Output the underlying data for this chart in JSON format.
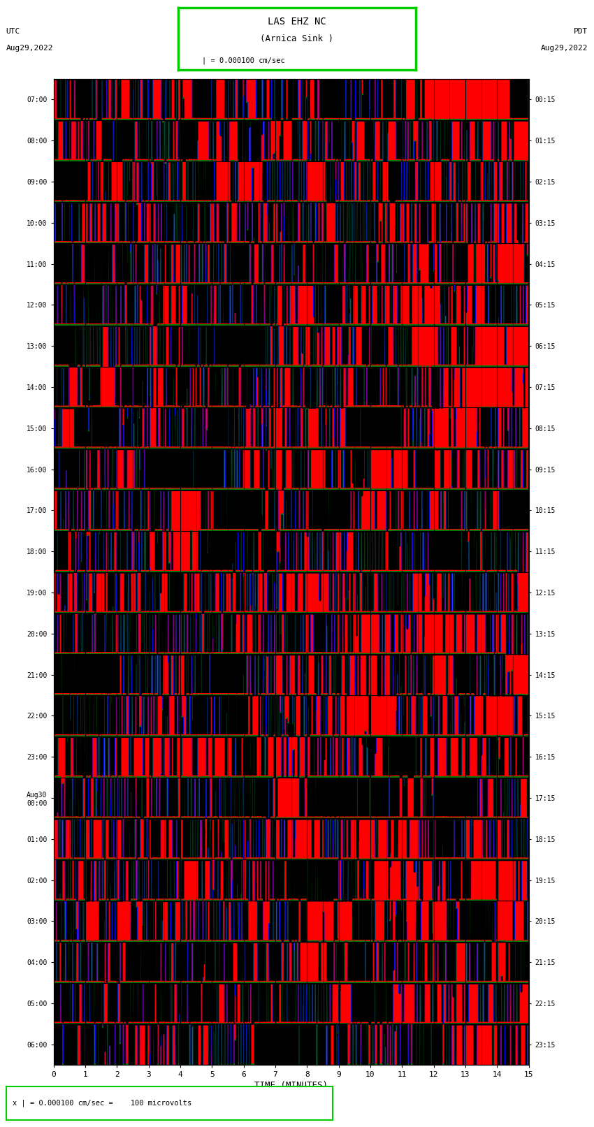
{
  "title_line1": "LAS EHZ NC",
  "title_line2": "(Arnica Sink )",
  "title_scale": "| = 0.000100 cm/sec",
  "left_header_line1": "UTC",
  "left_header_line2": "Aug29,2022",
  "right_header_line1": "PDT",
  "right_header_line2": "Aug29,2022",
  "footer_scale": "x | = 0.000100 cm/sec =    100 microvolts",
  "xlabel": "TIME (MINUTES)",
  "xlim": [
    0,
    15
  ],
  "left_yticks_labels": [
    "07:00",
    "08:00",
    "09:00",
    "10:00",
    "11:00",
    "12:00",
    "13:00",
    "14:00",
    "15:00",
    "16:00",
    "17:00",
    "18:00",
    "19:00",
    "20:00",
    "21:00",
    "22:00",
    "23:00",
    "Aug30\n00:00",
    "01:00",
    "02:00",
    "03:00",
    "04:00",
    "05:00",
    "06:00"
  ],
  "right_yticks_labels": [
    "00:15",
    "01:15",
    "02:15",
    "03:15",
    "04:15",
    "05:15",
    "06:15",
    "07:15",
    "08:15",
    "09:15",
    "10:15",
    "11:15",
    "12:15",
    "13:15",
    "14:15",
    "15:15",
    "16:15",
    "17:15",
    "18:15",
    "19:15",
    "20:15",
    "21:15",
    "22:15",
    "23:15"
  ],
  "n_rows": 24,
  "bg_color": "#ff0000",
  "title_box_color": "#00cc00",
  "footer_box_color": "#00cc00",
  "fig_bg": "#ffffff",
  "seed": 42,
  "n_pts": 18000,
  "signal_amplitude": 15.0,
  "colors_order": [
    "red",
    "blue",
    "green",
    "black"
  ],
  "lw": 1.5
}
